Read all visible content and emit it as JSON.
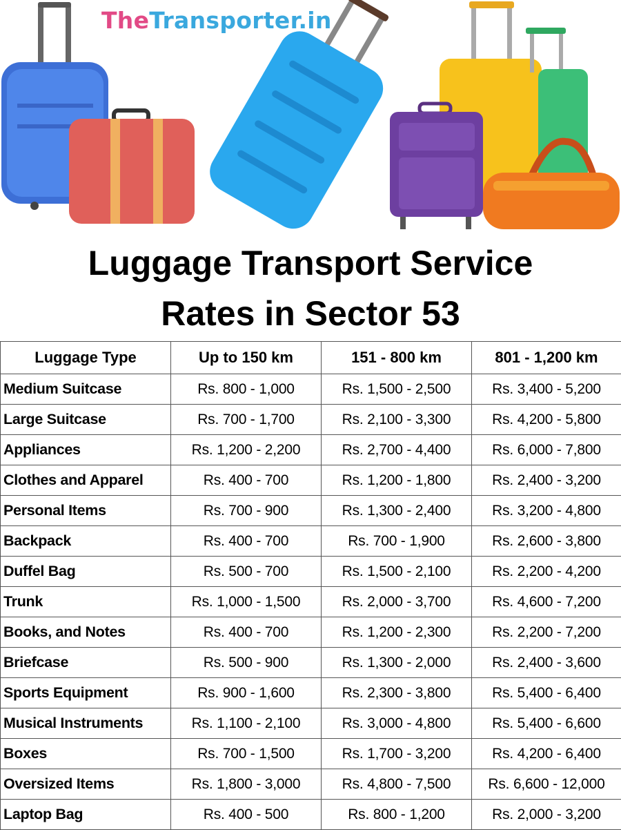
{
  "logo": {
    "part1": "The",
    "part2": "Transporter.in",
    "colors": {
      "part1": "#e24a86",
      "part2": "#3aa8de"
    }
  },
  "title": {
    "line1": "Luggage Transport Service",
    "line2": "Rates in Sector 53"
  },
  "table": {
    "headers": [
      "Luggage Type",
      "Up to 150 km",
      "151 - 800 km",
      "801 - 1,200 km"
    ],
    "rows": [
      [
        "Medium Suitcase",
        "Rs. 800 - 1,000",
        "Rs. 1,500 - 2,500",
        "Rs. 3,400 - 5,200"
      ],
      [
        "Large Suitcase",
        "Rs. 700 - 1,700",
        "Rs. 2,100 - 3,300",
        "Rs. 4,200 - 5,800"
      ],
      [
        "Appliances",
        "Rs. 1,200 - 2,200",
        "Rs. 2,700 - 4,400",
        "Rs. 6,000 - 7,800"
      ],
      [
        "Clothes and Apparel",
        "Rs. 400 - 700",
        "Rs. 1,200 - 1,800",
        "Rs. 2,400 - 3,200"
      ],
      [
        "Personal Items",
        "Rs. 700 - 900",
        "Rs. 1,300 - 2,400",
        "Rs. 3,200 - 4,800"
      ],
      [
        "Backpack",
        "Rs. 400 - 700",
        "Rs. 700 - 1,900",
        "Rs. 2,600 - 3,800"
      ],
      [
        "Duffel Bag",
        "Rs. 500 - 700",
        "Rs. 1,500 - 2,100",
        "Rs. 2,200 - 4,200"
      ],
      [
        "Trunk",
        "Rs. 1,000 - 1,500",
        "Rs. 2,000 - 3,700",
        "Rs. 4,600 - 7,200"
      ],
      [
        "Books, and Notes",
        "Rs. 400 - 700",
        "Rs. 1,200 - 2,300",
        "Rs. 2,200 - 7,200"
      ],
      [
        "Briefcase",
        "Rs. 500 - 900",
        "Rs. 1,300 - 2,000",
        "Rs. 2,400 - 3,600"
      ],
      [
        "Sports Equipment",
        "Rs. 900 - 1,600",
        "Rs. 2,300 - 3,800",
        "Rs. 5,400 - 6,400"
      ],
      [
        "Musical Instruments",
        "Rs. 1,100 - 2,100",
        "Rs. 3,000 - 4,800",
        "Rs. 5,400 - 6,600"
      ],
      [
        "Boxes",
        "Rs. 700 - 1,500",
        "Rs. 1,700 - 3,200",
        "Rs. 4,200 - 6,400"
      ],
      [
        "Oversized Items",
        "Rs. 1,800 - 3,000",
        "Rs. 4,800 - 7,500",
        "Rs. 6,600 - 12,000"
      ],
      [
        "Laptop Bag",
        "Rs. 400 - 500",
        "Rs. 800 - 1,200",
        "Rs. 2,000 - 3,200"
      ]
    ]
  }
}
